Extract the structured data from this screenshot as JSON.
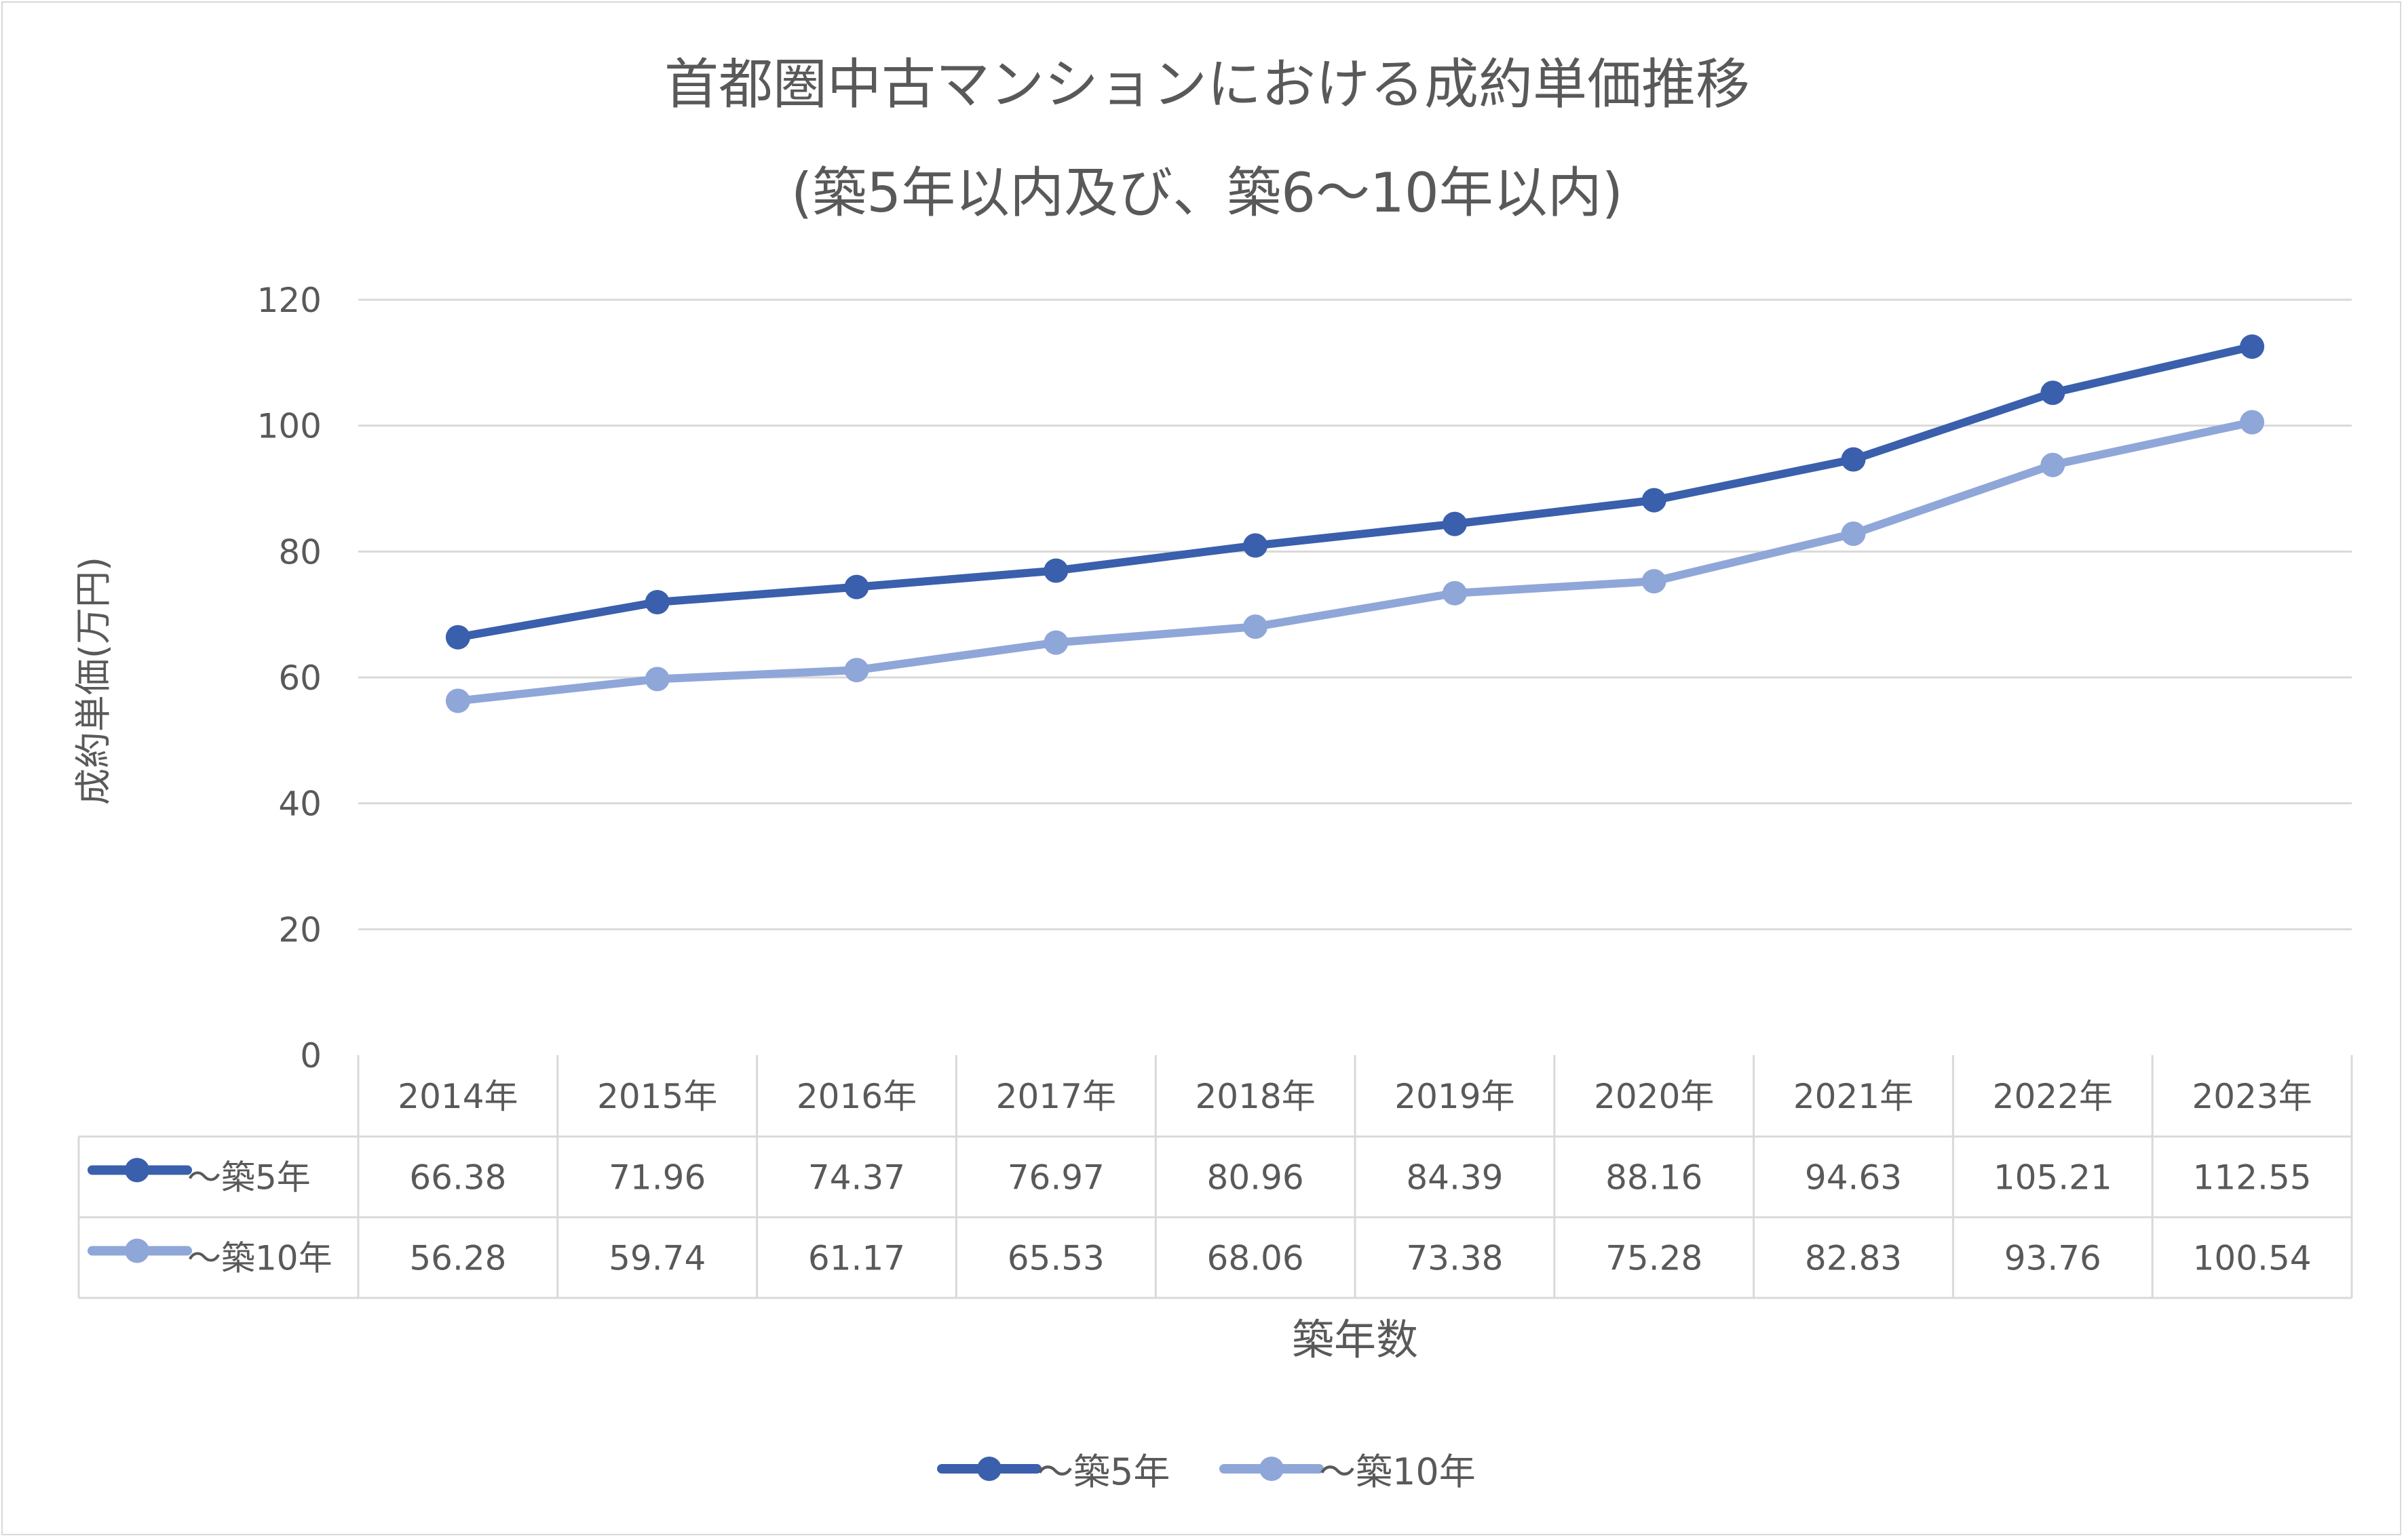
{
  "chart_data": {
    "type": "line",
    "title": "首都圏中古マンションにおける成約単価推移",
    "subtitle": "(築5年以内及び、築6～10年以内)",
    "xlabel": "築年数",
    "ylabel": "成約単価(万円)",
    "ylim": [
      0,
      120
    ],
    "yticks": [
      "0",
      "20",
      "40",
      "60",
      "80",
      "100",
      "120"
    ],
    "grid": true,
    "legend_position": "bottom",
    "categories": [
      "2014年",
      "2015年",
      "2016年",
      "2017年",
      "2018年",
      "2019年",
      "2020年",
      "2021年",
      "2022年",
      "2023年"
    ],
    "series": [
      {
        "name": "～築5年",
        "color": "#3a5fac",
        "values": [
          66.38,
          71.96,
          74.37,
          76.97,
          80.96,
          84.39,
          88.16,
          94.63,
          105.21,
          112.55
        ],
        "labels": [
          "66.38",
          "71.96",
          "74.37",
          "76.97",
          "80.96",
          "84.39",
          "88.16",
          "94.63",
          "105.21",
          "112.55"
        ]
      },
      {
        "name": "～築10年",
        "color": "#8fa6d8",
        "values": [
          56.28,
          59.74,
          61.17,
          65.53,
          68.06,
          73.38,
          75.28,
          82.83,
          93.76,
          100.54
        ],
        "labels": [
          "56.28",
          "59.74",
          "61.17",
          "65.53",
          "68.06",
          "73.38",
          "75.28",
          "82.83",
          "93.76",
          "100.54"
        ]
      }
    ],
    "data_table": true
  }
}
